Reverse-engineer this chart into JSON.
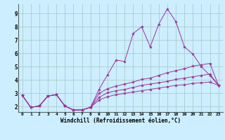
{
  "xlabel": "Windchill (Refroidissement éolien,°C)",
  "background_color": "#cceeff",
  "grid_color": "#aacccc",
  "line_color": "#993399",
  "x_ticks": [
    0,
    1,
    2,
    3,
    4,
    5,
    6,
    7,
    8,
    9,
    10,
    11,
    12,
    13,
    14,
    15,
    16,
    17,
    18,
    19,
    20,
    21,
    22,
    23
  ],
  "y_ticks": [
    2,
    3,
    4,
    5,
    6,
    7,
    8,
    9
  ],
  "xlim": [
    -0.5,
    23.5
  ],
  "ylim": [
    1.6,
    9.7
  ],
  "series": [
    [
      2.85,
      1.95,
      2.05,
      2.8,
      2.9,
      2.05,
      1.75,
      1.75,
      1.95,
      3.3,
      4.4,
      5.5,
      5.4,
      7.5,
      8.0,
      6.5,
      8.2,
      9.35,
      8.4,
      6.5,
      5.95,
      5.0,
      4.35,
      3.6
    ],
    [
      2.85,
      1.95,
      2.05,
      2.8,
      2.9,
      2.05,
      1.75,
      1.75,
      1.95,
      3.0,
      3.35,
      3.55,
      3.7,
      3.85,
      4.05,
      4.15,
      4.35,
      4.55,
      4.7,
      4.85,
      5.05,
      5.15,
      5.25,
      3.6
    ],
    [
      2.85,
      1.95,
      2.05,
      2.8,
      2.9,
      2.05,
      1.75,
      1.75,
      1.95,
      2.7,
      3.05,
      3.2,
      3.3,
      3.45,
      3.6,
      3.7,
      3.8,
      3.9,
      4.05,
      4.15,
      4.25,
      4.35,
      4.45,
      3.6
    ],
    [
      2.85,
      1.95,
      2.05,
      2.8,
      2.9,
      2.05,
      1.75,
      1.75,
      1.95,
      2.5,
      2.75,
      2.9,
      3.0,
      3.1,
      3.2,
      3.3,
      3.4,
      3.5,
      3.6,
      3.65,
      3.75,
      3.8,
      3.85,
      3.6
    ]
  ]
}
